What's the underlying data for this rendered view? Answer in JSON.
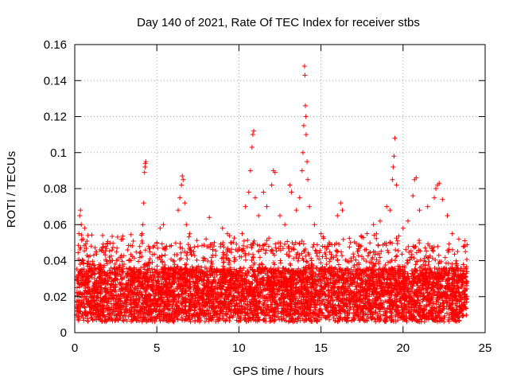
{
  "chart_data": {
    "type": "scatter",
    "title": "Day 140 of 2021, Rate Of TEC Index for receiver stbs",
    "xlabel": "GPS time / hours",
    "ylabel": "ROTI / TECUs",
    "xlim": [
      0,
      25
    ],
    "ylim": [
      0,
      0.16
    ],
    "x_ticks": [
      0,
      5,
      10,
      15,
      20,
      25
    ],
    "x_tick_labels": [
      "0",
      "5",
      "10",
      "15",
      "20",
      "25"
    ],
    "y_ticks": [
      0,
      0.02,
      0.04,
      0.06,
      0.08,
      0.1,
      0.12,
      0.14,
      0.16
    ],
    "y_tick_labels": [
      "0",
      "0.02",
      "0.04",
      "0.06",
      "0.08",
      "0.1",
      "0.12",
      "0.14",
      "0.16"
    ],
    "grid": true,
    "marker": "+",
    "color": "#ff0000",
    "series": [
      {
        "name": "ROTI",
        "points": [
          [
            0.3,
            0.065
          ],
          [
            0.35,
            0.068
          ],
          [
            0.4,
            0.06
          ],
          [
            0.25,
            0.055
          ],
          [
            0.5,
            0.052
          ],
          [
            0.6,
            0.058
          ],
          [
            0.8,
            0.054
          ],
          [
            1.0,
            0.048
          ],
          [
            1.3,
            0.045
          ],
          [
            1.7,
            0.054
          ],
          [
            1.9,
            0.048
          ],
          [
            2.3,
            0.04
          ],
          [
            2.8,
            0.042
          ],
          [
            3.0,
            0.038
          ],
          [
            3.3,
            0.04
          ],
          [
            3.6,
            0.036
          ],
          [
            4.1,
            0.055
          ],
          [
            4.15,
            0.06
          ],
          [
            4.2,
            0.072
          ],
          [
            4.25,
            0.089
          ],
          [
            4.28,
            0.092
          ],
          [
            4.3,
            0.094
          ],
          [
            4.33,
            0.095
          ],
          [
            4.5,
            0.048
          ],
          [
            5.0,
            0.05
          ],
          [
            5.2,
            0.058
          ],
          [
            5.4,
            0.06
          ],
          [
            5.8,
            0.048
          ],
          [
            6.3,
            0.068
          ],
          [
            6.4,
            0.075
          ],
          [
            6.5,
            0.082
          ],
          [
            6.55,
            0.087
          ],
          [
            6.6,
            0.085
          ],
          [
            6.7,
            0.072
          ],
          [
            6.8,
            0.06
          ],
          [
            7.0,
            0.055
          ],
          [
            7.5,
            0.048
          ],
          [
            8.0,
            0.052
          ],
          [
            8.2,
            0.064
          ],
          [
            8.5,
            0.05
          ],
          [
            9.0,
            0.058
          ],
          [
            9.3,
            0.055
          ],
          [
            9.5,
            0.05
          ],
          [
            9.8,
            0.046
          ],
          [
            10.2,
            0.055
          ],
          [
            10.4,
            0.07
          ],
          [
            10.6,
            0.078
          ],
          [
            10.7,
            0.09
          ],
          [
            10.8,
            0.103
          ],
          [
            10.85,
            0.11
          ],
          [
            10.9,
            0.112
          ],
          [
            11.0,
            0.075
          ],
          [
            11.2,
            0.065
          ],
          [
            11.5,
            0.078
          ],
          [
            11.7,
            0.07
          ],
          [
            12.0,
            0.082
          ],
          [
            12.1,
            0.09
          ],
          [
            12.2,
            0.089
          ],
          [
            12.5,
            0.065
          ],
          [
            12.8,
            0.06
          ],
          [
            13.1,
            0.082
          ],
          [
            13.2,
            0.078
          ],
          [
            13.5,
            0.068
          ],
          [
            13.7,
            0.075
          ],
          [
            13.85,
            0.09
          ],
          [
            13.9,
            0.1
          ],
          [
            13.95,
            0.115
          ],
          [
            14.0,
            0.148
          ],
          [
            14.02,
            0.143
          ],
          [
            14.05,
            0.126
          ],
          [
            14.08,
            0.12
          ],
          [
            14.1,
            0.11
          ],
          [
            14.15,
            0.095
          ],
          [
            14.2,
            0.085
          ],
          [
            14.3,
            0.07
          ],
          [
            14.6,
            0.06
          ],
          [
            15.0,
            0.055
          ],
          [
            15.5,
            0.05
          ],
          [
            16.0,
            0.065
          ],
          [
            16.2,
            0.072
          ],
          [
            16.3,
            0.068
          ],
          [
            16.8,
            0.05
          ],
          [
            17.3,
            0.048
          ],
          [
            17.8,
            0.055
          ],
          [
            18.2,
            0.06
          ],
          [
            18.6,
            0.062
          ],
          [
            19.0,
            0.07
          ],
          [
            19.2,
            0.068
          ],
          [
            19.35,
            0.085
          ],
          [
            19.4,
            0.092
          ],
          [
            19.45,
            0.098
          ],
          [
            19.5,
            0.108
          ],
          [
            19.6,
            0.082
          ],
          [
            20.0,
            0.058
          ],
          [
            20.3,
            0.062
          ],
          [
            20.6,
            0.076
          ],
          [
            20.7,
            0.085
          ],
          [
            20.8,
            0.086
          ],
          [
            21.0,
            0.068
          ],
          [
            21.5,
            0.07
          ],
          [
            21.9,
            0.075
          ],
          [
            22.0,
            0.08
          ],
          [
            22.1,
            0.082
          ],
          [
            22.2,
            0.083
          ],
          [
            22.4,
            0.074
          ],
          [
            22.7,
            0.065
          ],
          [
            23.0,
            0.055
          ],
          [
            23.4,
            0.052
          ],
          [
            23.8,
            0.045
          ]
        ]
      }
    ]
  }
}
